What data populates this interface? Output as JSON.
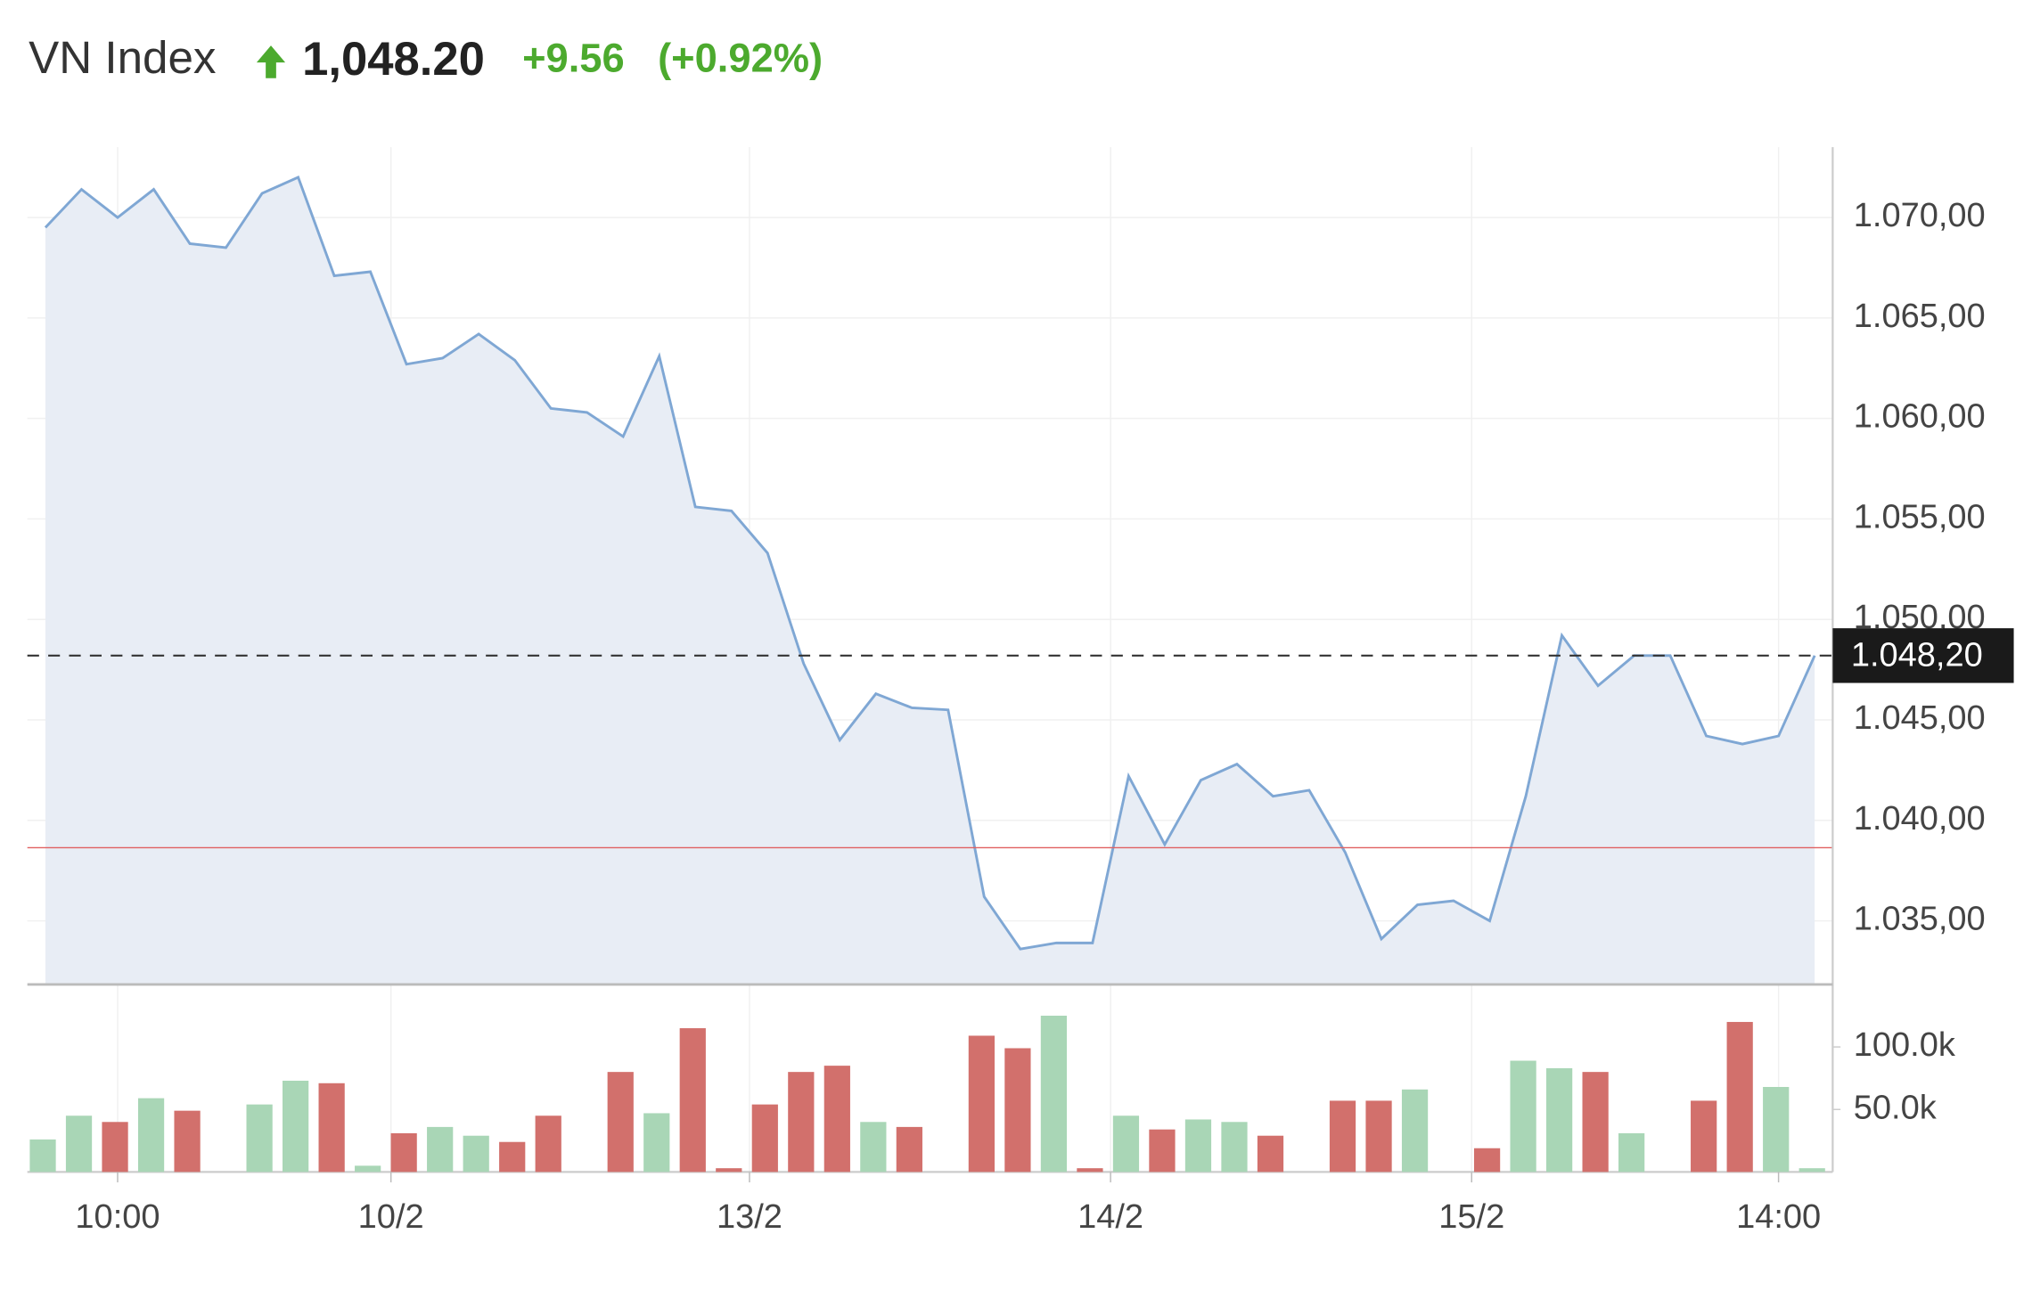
{
  "chart_data": {
    "type": "line",
    "title": "VN Index",
    "price": "1,048.20",
    "change": "+9.56",
    "change_pct": "(+0.92%)",
    "color": "#7fa7d4",
    "fill": "#e8edf5",
    "grid": true,
    "x": [
      0,
      1,
      2,
      3,
      4,
      5,
      6,
      7,
      8,
      9,
      10,
      11,
      12,
      13,
      14,
      15,
      16,
      17,
      18,
      19,
      20,
      21,
      22,
      23,
      24,
      25,
      26,
      27,
      28,
      29,
      30,
      31,
      32,
      33,
      34,
      35,
      36,
      37,
      38,
      39,
      40,
      41,
      42,
      43,
      44,
      45,
      46,
      47,
      48,
      49
    ],
    "values": [
      1069.5,
      1071.4,
      1070.0,
      1071.4,
      1068.7,
      1068.5,
      1071.2,
      1072.0,
      1067.1,
      1067.3,
      1062.7,
      1063.0,
      1064.2,
      1062.9,
      1060.5,
      1060.3,
      1059.1,
      1063.1,
      1055.6,
      1055.4,
      1053.3,
      1047.8,
      1044.0,
      1046.3,
      1045.6,
      1045.5,
      1036.2,
      1033.6,
      1033.9,
      1033.9,
      1042.2,
      1038.8,
      1042.0,
      1042.8,
      1041.2,
      1041.5,
      1038.4,
      1034.1,
      1035.8,
      1036.0,
      1035.0,
      1041.2,
      1049.2,
      1046.7,
      1048.2,
      1048.2,
      1044.2,
      1043.8,
      1044.2,
      1048.2
    ],
    "xlim": [
      -0.5,
      49.5
    ],
    "xticks": [
      {
        "value": 2,
        "label": "10:00"
      },
      {
        "value": 9.57,
        "label": "10/2"
      },
      {
        "value": 19.5,
        "label": "13/2"
      },
      {
        "value": 29.5,
        "label": "14/2"
      },
      {
        "value": 39.5,
        "label": "15/2"
      },
      {
        "value": 48,
        "label": "14:00"
      }
    ],
    "ylim": [
      1031.9,
      1073.5
    ],
    "yticks": [
      {
        "value": 1035,
        "label": "1.035,00"
      },
      {
        "value": 1040,
        "label": "1.040,00"
      },
      {
        "value": 1045,
        "label": "1.045,00"
      },
      {
        "value": 1050,
        "label": "1.050,00"
      },
      {
        "value": 1055,
        "label": "1.055,00"
      },
      {
        "value": 1060,
        "label": "1.060,00"
      },
      {
        "value": 1065,
        "label": "1.065,00"
      },
      {
        "value": 1070,
        "label": "1.070,00"
      }
    ],
    "last_price": {
      "value": 1048.2,
      "label": "1.048,20"
    },
    "previous_close": 1038.64,
    "volume": {
      "type": "bar",
      "values": [
        26000,
        45000,
        40000,
        59000,
        49000,
        null,
        54000,
        73000,
        71000,
        5000,
        31000,
        36000,
        29000,
        24000,
        45000,
        null,
        80000,
        47000,
        115000,
        3000,
        54000,
        80000,
        85000,
        40000,
        36000,
        null,
        109000,
        99000,
        125000,
        3000,
        45000,
        34000,
        42000,
        40000,
        29000,
        null,
        57000,
        57000,
        66000,
        null,
        19000,
        89000,
        83000,
        80000,
        31000,
        null,
        57000,
        120000,
        68000,
        3000
      ],
      "colors": [
        "#a9d6b6",
        "#a9d6b6",
        "#d2706c",
        "#a9d6b6",
        "#d2706c",
        null,
        "#a9d6b6",
        "#a9d6b6",
        "#d2706c",
        "#a9d6b6",
        "#d2706c",
        "#a9d6b6",
        "#a9d6b6",
        "#d2706c",
        "#d2706c",
        null,
        "#d2706c",
        "#a9d6b6",
        "#d2706c",
        "#d2706c",
        "#d2706c",
        "#d2706c",
        "#d2706c",
        "#a9d6b6",
        "#d2706c",
        null,
        "#d2706c",
        "#d2706c",
        "#a9d6b6",
        "#d2706c",
        "#a9d6b6",
        "#d2706c",
        "#a9d6b6",
        "#a9d6b6",
        "#d2706c",
        null,
        "#d2706c",
        "#d2706c",
        "#a9d6b6",
        null,
        "#d2706c",
        "#a9d6b6",
        "#a9d6b6",
        "#d2706c",
        "#a9d6b6",
        null,
        "#d2706c",
        "#d2706c",
        "#a9d6b6",
        "#a9d6b6"
      ],
      "ylim": [
        0,
        150000
      ],
      "yticks": [
        {
          "value": 50000,
          "label": "50.0k"
        },
        {
          "value": 100000,
          "label": "100.0k"
        }
      ]
    }
  }
}
